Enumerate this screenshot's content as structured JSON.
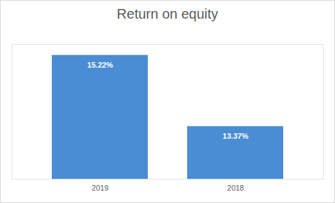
{
  "chart_data": {
    "type": "bar",
    "title": "Return on equity",
    "categories": [
      "2019",
      "2018"
    ],
    "values": [
      15.22,
      13.37
    ],
    "value_labels": [
      "15.22%",
      "13.37%"
    ],
    "color": "#4a8dd3",
    "ylim": [
      12,
      15.5
    ],
    "yticks": [],
    "grid": false,
    "data_labels": true,
    "tick_labels": "x"
  }
}
